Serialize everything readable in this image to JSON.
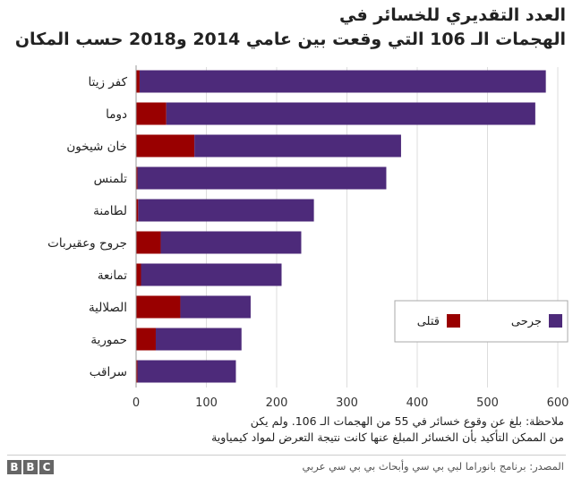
{
  "title": {
    "line1": "العدد التقديري للخسائر في",
    "line2": "الهجمات الـ 106 التي وقعت بين عامي 2014 و2018 حسب المكان"
  },
  "note": {
    "line1": "ملاحظة: بلغ عن وقوع خسائر في 55 من الهجمات الـ 106. ولم يكن",
    "line2": "من الممكن التأكيد بأن الخسائر المبلغ عنها كانت نتيجة التعرض لمواد كيمياوية"
  },
  "source": "المصدر: برنامج بانوراما لبي بي سي وأبحاث بي بي سي عربي",
  "brand": [
    "B",
    "B",
    "C"
  ],
  "colors": {
    "killed": "#990000",
    "injured": "#4d2a7a",
    "axis": "#999999",
    "grid": "#dddddd"
  },
  "chart_data": {
    "type": "bar",
    "orientation": "horizontal",
    "stacked": true,
    "categories": [
      "كفر زيتا",
      "دوما",
      "خان شيخون",
      "تلمنس",
      "لطامنة",
      "جروح وعقيربات",
      "تمانعة",
      "الصلالية",
      "حمورية",
      "سراقب"
    ],
    "series": [
      {
        "name": "قتلى",
        "values": [
          5,
          43,
          83,
          2,
          3,
          35,
          7,
          63,
          28,
          2
        ]
      },
      {
        "name": "جرحى",
        "values": [
          578,
          525,
          294,
          354,
          250,
          200,
          200,
          100,
          122,
          140
        ]
      }
    ],
    "xlim": [
      0,
      600
    ],
    "xticks": [
      0,
      100,
      200,
      300,
      400,
      500,
      600
    ],
    "grid": true,
    "legend_position": "right"
  }
}
